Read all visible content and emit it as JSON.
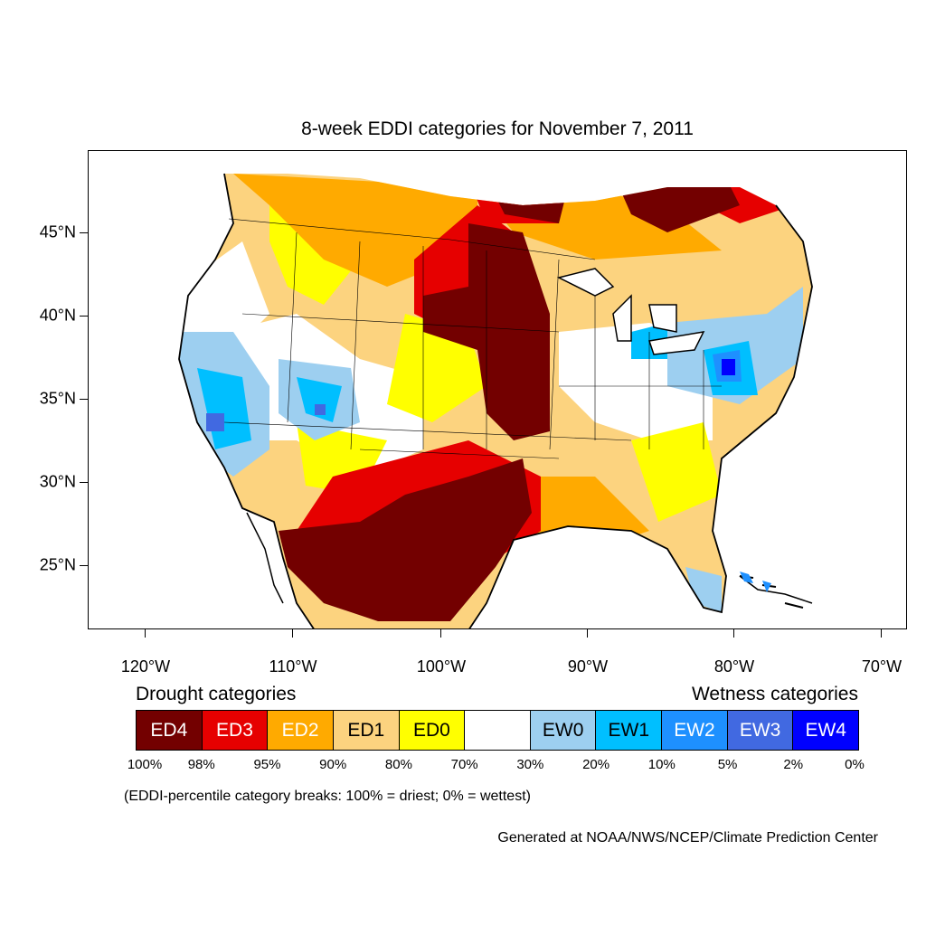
{
  "title": "8-week EDDI categories for November 7, 2011",
  "lat_labels": [
    "45°N",
    "40°N",
    "35°N",
    "30°N",
    "25°N"
  ],
  "lon_labels": [
    "120°W",
    "110°W",
    "100°W",
    "90°W",
    "80°W",
    "70°W"
  ],
  "legend": {
    "drought_title": "Drought categories",
    "wetness_title": "Wetness categories",
    "categories": [
      {
        "label": "ED4",
        "color": "#730000",
        "text_color": "#ffffff"
      },
      {
        "label": "ED3",
        "color": "#e60000",
        "text_color": "#ffffff"
      },
      {
        "label": "ED2",
        "color": "#ffaa00",
        "text_color": "#ffffff"
      },
      {
        "label": "ED1",
        "color": "#fcd37f",
        "text_color": "#000000"
      },
      {
        "label": "ED0",
        "color": "#ffff00",
        "text_color": "#000000"
      },
      {
        "label": "",
        "color": "#ffffff",
        "text_color": "#000000"
      },
      {
        "label": "EW0",
        "color": "#9dcff0",
        "text_color": "#000000"
      },
      {
        "label": "EW1",
        "color": "#00bfff",
        "text_color": "#000000"
      },
      {
        "label": "EW2",
        "color": "#1e90ff",
        "text_color": "#ffffff"
      },
      {
        "label": "EW3",
        "color": "#4169e1",
        "text_color": "#ffffff"
      },
      {
        "label": "EW4",
        "color": "#0000ff",
        "text_color": "#ffffff"
      }
    ],
    "percentiles": [
      "100%",
      "98%",
      "95%",
      "90%",
      "80%",
      "70%",
      "30%",
      "20%",
      "10%",
      "5%",
      "2%",
      "0%"
    ]
  },
  "note": "(EDDI-percentile category breaks: 100% = driest; 0% = wettest)",
  "credit": "Generated at NOAA/NWS/NCEP/Climate Prediction Center"
}
